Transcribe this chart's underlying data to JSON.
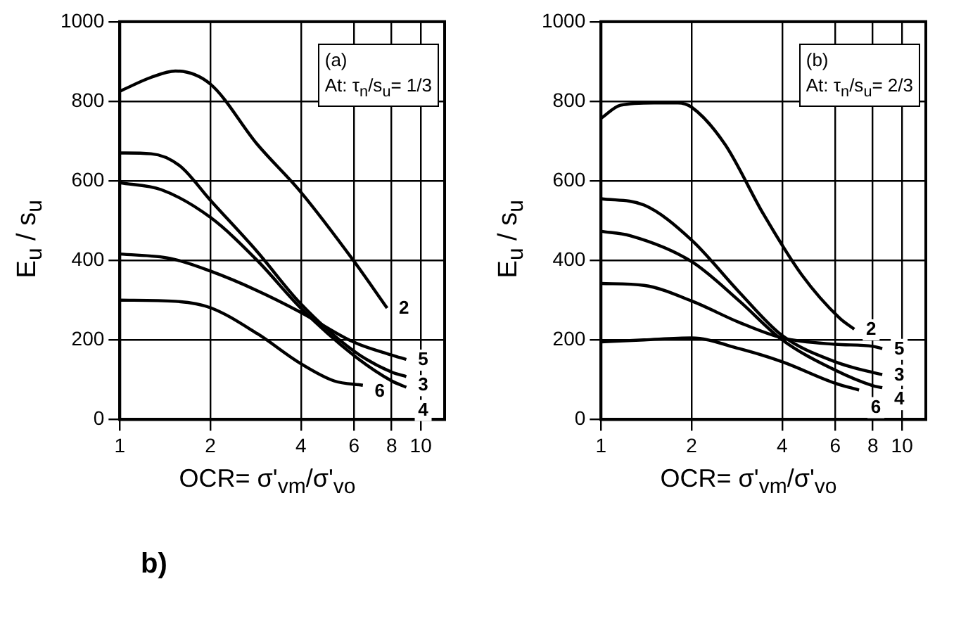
{
  "chart_data": [
    {
      "type": "line",
      "xlabel": "OCR= σ'$_{vm}$/σ'$_{vo}$",
      "ylabel": "E$_{u}$ / s$_{u}$",
      "log": "x",
      "xlim": [
        1,
        12
      ],
      "xticks": [
        1,
        2,
        4,
        6,
        8,
        10
      ],
      "ylim": [
        0,
        1000
      ],
      "yticks": [
        0,
        200,
        400,
        600,
        800,
        1000
      ],
      "grid": true,
      "legend": false,
      "annotations": [
        "(a)",
        "At: τ$_{n}$/s$_{u}$= 1/3"
      ],
      "series": [
        {
          "name": "2",
          "color": "#000000",
          "x": [
            1,
            1.27,
            1.53,
            2,
            2.86,
            3.98,
            5.97,
            7.73
          ],
          "values": [
            825,
            860,
            876,
            843,
            692,
            573,
            400,
            280
          ]
        },
        {
          "name": "3",
          "color": "#000000",
          "x": [
            1,
            1.27,
            1.58,
            2,
            2.86,
            3.98,
            5.97,
            8,
            8.95
          ],
          "values": [
            670,
            668,
            638,
            551,
            422,
            292,
            173,
            119,
            108
          ]
        },
        {
          "name": "4",
          "color": "#000000",
          "x": [
            1,
            1.37,
            2,
            2.86,
            3.98,
            5.97,
            8,
            8.95
          ],
          "values": [
            595,
            578,
            508,
            400,
            281,
            162,
            97,
            81
          ]
        },
        {
          "name": "5",
          "color": "#000000",
          "x": [
            1,
            1.47,
            2,
            2.86,
            3.98,
            5.97,
            8,
            8.95
          ],
          "values": [
            416,
            405,
            373,
            324,
            270,
            195,
            162,
            151
          ]
        },
        {
          "name": "6",
          "color": "#000000",
          "x": [
            1,
            1.53,
            2,
            2.86,
            3.98,
            5.15,
            6.42
          ],
          "values": [
            300,
            297,
            281,
            216,
            141,
            97,
            86
          ]
        }
      ]
    },
    {
      "type": "line",
      "xlabel": "OCR= σ'$_{vm}$/σ'$_{vo}$",
      "ylabel": "E$_{u}$ / s$_{u}$",
      "log": "x",
      "xlim": [
        1,
        12
      ],
      "xticks": [
        1,
        2,
        4,
        6,
        8,
        10
      ],
      "ylim": [
        0,
        1000
      ],
      "yticks": [
        0,
        200,
        400,
        600,
        800,
        1000
      ],
      "grid": true,
      "legend": false,
      "annotations": [
        "(b)",
        "At: τ$_{n}$/s$_{u}$= 2/3"
      ],
      "series": [
        {
          "name": "2",
          "color": "#000000",
          "x": [
            1,
            1.16,
            1.5,
            1.8,
            2,
            2.58,
            3.46,
            4.64,
            6.2,
            6.94
          ],
          "values": [
            757,
            790,
            796,
            796,
            785,
            692,
            517,
            364,
            255,
            227
          ]
        },
        {
          "name": "3",
          "color": "#000000",
          "x": [
            1,
            1.39,
            2,
            2.88,
            4,
            6,
            8,
            8.6
          ],
          "values": [
            555,
            539,
            451,
            320,
            211,
            145,
            118,
            113
          ]
        },
        {
          "name": "4",
          "color": "#000000",
          "x": [
            1,
            1.25,
            2,
            2.88,
            4,
            6,
            8,
            8.6
          ],
          "values": [
            473,
            462,
            397,
            298,
            200,
            124,
            85,
            80
          ]
        },
        {
          "name": "5",
          "color": "#000000",
          "x": [
            1,
            1.39,
            2,
            2.88,
            4,
            6,
            8,
            8.6
          ],
          "values": [
            342,
            337,
            298,
            244,
            205,
            189,
            184,
            178
          ]
        },
        {
          "name": "6",
          "color": "#000000",
          "x": [
            1,
            1.39,
            2,
            2.88,
            4,
            6,
            7.2
          ],
          "values": [
            195,
            200,
            205,
            178,
            145,
            91,
            74
          ]
        }
      ]
    },
    {
      "type": "other",
      "title": "b)"
    }
  ]
}
